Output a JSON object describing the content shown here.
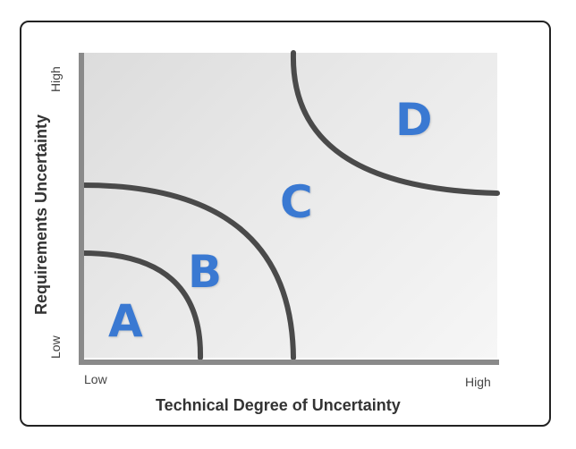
{
  "axes": {
    "x_title": "Technical Degree of Uncertainty",
    "y_title": "Requirements Uncertainty",
    "x_low": "Low",
    "x_high": "High",
    "y_low": "Low",
    "y_high": "High"
  },
  "regions": {
    "a": "A",
    "b": "B",
    "c": "C",
    "d": "D"
  },
  "colors": {
    "region_label": "#3a79d2",
    "curve": "#4a4a4a",
    "axis": "#8a8a8a"
  }
}
